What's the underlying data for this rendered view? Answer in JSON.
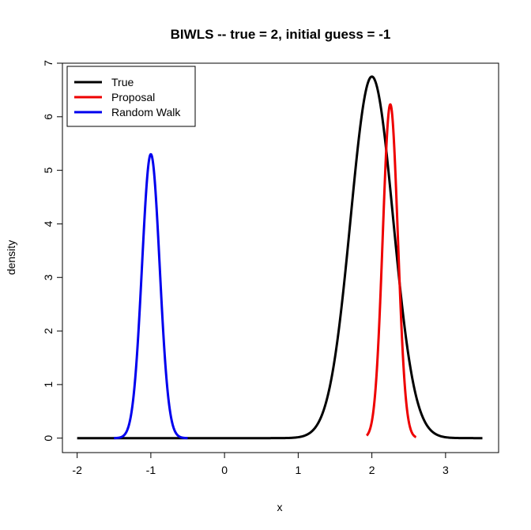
{
  "chart_data": {
    "type": "line",
    "title": "BIWLS -- true = 2, initial guess = -1",
    "xlabel": "x",
    "ylabel": "density",
    "xlim": [
      -2.2,
      3.72
    ],
    "ylim": [
      -0.27,
      7.0
    ],
    "xticks": [
      -2,
      -1,
      0,
      1,
      2,
      3
    ],
    "yticks": [
      0,
      1,
      2,
      3,
      4,
      5,
      6,
      7
    ],
    "grid": false,
    "legend_position": "top-left",
    "series": [
      {
        "name": "True",
        "color": "#000000",
        "distribution": "normal",
        "mean": 2.0,
        "sd": 0.059,
        "peak_density": 6.75,
        "x_range": [
          -2.0,
          3.5
        ]
      },
      {
        "name": "Proposal",
        "color": "#ee0000",
        "distribution": "normal",
        "mean": 2.25,
        "sd": 0.064,
        "peak_density": 6.23,
        "x_range": [
          1.93,
          2.6
        ]
      },
      {
        "name": "Random Walk",
        "color": "#0000ee",
        "distribution": "normal",
        "mean": -1.0,
        "sd": 0.075,
        "peak_density": 5.3,
        "x_range": [
          -1.5,
          -0.5
        ]
      }
    ]
  }
}
